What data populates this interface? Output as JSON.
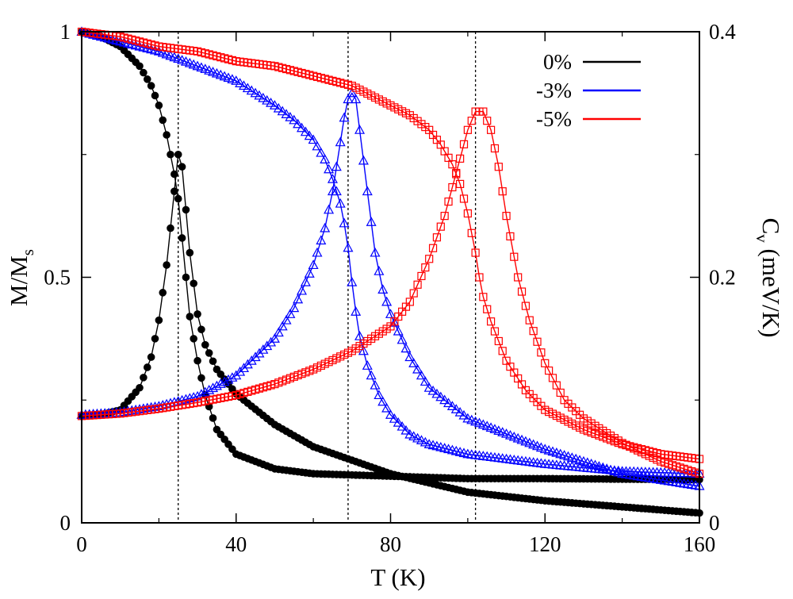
{
  "chart_data": {
    "type": "line",
    "xlabel": "T (K)",
    "ylabel_left": {
      "main": "M/M",
      "sub": "s"
    },
    "ylabel_right": {
      "main": "C",
      "sub": "v",
      "rest": " (meV/K)"
    },
    "xlim": [
      0,
      160
    ],
    "ylim_left": [
      0,
      1
    ],
    "ylim_right": [
      0,
      0.4
    ],
    "x_ticks": [
      0,
      40,
      80,
      120,
      160
    ],
    "x_tick_labels": [
      "0",
      "40",
      "80",
      "120",
      "160"
    ],
    "y_left_ticks": [
      0,
      0.5,
      1
    ],
    "y_left_tick_labels": [
      "0",
      "0.5",
      "1"
    ],
    "y_right_ticks": [
      0,
      0.2,
      0.4
    ],
    "y_right_tick_labels": [
      "0",
      "0.2",
      "0.4"
    ],
    "legend_position": "top-right",
    "series": [
      {
        "name": "0%",
        "color": "#000000",
        "marker": "filled-circle",
        "tc": 25,
        "magnetization": {
          "axis": "left",
          "points": [
            [
              0,
              1.0
            ],
            [
              5,
              0.99
            ],
            [
              10,
              0.97
            ],
            [
              15,
              0.93
            ],
            [
              18,
              0.89
            ],
            [
              20,
              0.85
            ],
            [
              22,
              0.79
            ],
            [
              24,
              0.71
            ],
            [
              25,
              0.66
            ],
            [
              26,
              0.58
            ],
            [
              27,
              0.5
            ],
            [
              28,
              0.42
            ],
            [
              30,
              0.33
            ],
            [
              32,
              0.26
            ],
            [
              35,
              0.19
            ],
            [
              40,
              0.14
            ],
            [
              50,
              0.11
            ],
            [
              60,
              0.1
            ],
            [
              80,
              0.095
            ],
            [
              100,
              0.09
            ],
            [
              120,
              0.09
            ],
            [
              160,
              0.088
            ]
          ]
        },
        "heat_capacity": {
          "axis": "right",
          "points": [
            [
              0,
              0.087
            ],
            [
              5,
              0.088
            ],
            [
              10,
              0.092
            ],
            [
              15,
              0.11
            ],
            [
              18,
              0.135
            ],
            [
              20,
              0.165
            ],
            [
              22,
              0.21
            ],
            [
              24,
              0.27
            ],
            [
              25,
              0.3
            ],
            [
              26,
              0.29
            ],
            [
              27,
              0.255
            ],
            [
              28,
              0.22
            ],
            [
              30,
              0.17
            ],
            [
              32,
              0.145
            ],
            [
              35,
              0.125
            ],
            [
              40,
              0.105
            ],
            [
              50,
              0.08
            ],
            [
              60,
              0.062
            ],
            [
              80,
              0.04
            ],
            [
              100,
              0.025
            ],
            [
              120,
              0.018
            ],
            [
              160,
              0.008
            ]
          ]
        }
      },
      {
        "name": "-3%",
        "color": "#0000ff",
        "marker": "open-triangle",
        "tc": 69,
        "magnetization": {
          "axis": "left",
          "points": [
            [
              0,
              1.0
            ],
            [
              10,
              0.98
            ],
            [
              20,
              0.96
            ],
            [
              30,
              0.93
            ],
            [
              40,
              0.9
            ],
            [
              50,
              0.85
            ],
            [
              55,
              0.82
            ],
            [
              60,
              0.78
            ],
            [
              63,
              0.74
            ],
            [
              65,
              0.7
            ],
            [
              67,
              0.65
            ],
            [
              68,
              0.61
            ],
            [
              69,
              0.56
            ],
            [
              70,
              0.49
            ],
            [
              71,
              0.43
            ],
            [
              72,
              0.38
            ],
            [
              74,
              0.32
            ],
            [
              77,
              0.26
            ],
            [
              80,
              0.22
            ],
            [
              85,
              0.18
            ],
            [
              90,
              0.16
            ],
            [
              100,
              0.14
            ],
            [
              120,
              0.12
            ],
            [
              140,
              0.105
            ],
            [
              160,
              0.1
            ]
          ]
        },
        "heat_capacity": {
          "axis": "right",
          "points": [
            [
              0,
              0.088
            ],
            [
              10,
              0.09
            ],
            [
              20,
              0.095
            ],
            [
              30,
              0.103
            ],
            [
              40,
              0.12
            ],
            [
              50,
              0.15
            ],
            [
              55,
              0.175
            ],
            [
              60,
              0.21
            ],
            [
              63,
              0.24
            ],
            [
              65,
              0.27
            ],
            [
              67,
              0.31
            ],
            [
              68,
              0.33
            ],
            [
              69,
              0.345
            ],
            [
              70,
              0.35
            ],
            [
              71,
              0.345
            ],
            [
              72,
              0.32
            ],
            [
              74,
              0.27
            ],
            [
              76,
              0.22
            ],
            [
              78,
              0.19
            ],
            [
              80,
              0.17
            ],
            [
              85,
              0.135
            ],
            [
              90,
              0.11
            ],
            [
              100,
              0.085
            ],
            [
              120,
              0.06
            ],
            [
              140,
              0.04
            ],
            [
              160,
              0.03
            ]
          ]
        }
      },
      {
        "name": "-5%",
        "color": "#ff0000",
        "marker": "open-square",
        "tc": 102,
        "magnetization": {
          "axis": "left",
          "points": [
            [
              0,
              1.0
            ],
            [
              10,
              0.99
            ],
            [
              20,
              0.97
            ],
            [
              30,
              0.96
            ],
            [
              40,
              0.94
            ],
            [
              50,
              0.93
            ],
            [
              60,
              0.91
            ],
            [
              70,
              0.89
            ],
            [
              80,
              0.85
            ],
            [
              85,
              0.83
            ],
            [
              90,
              0.8
            ],
            [
              93,
              0.77
            ],
            [
              96,
              0.73
            ],
            [
              98,
              0.69
            ],
            [
              100,
              0.63
            ],
            [
              101,
              0.59
            ],
            [
              102,
              0.55
            ],
            [
              103,
              0.5
            ],
            [
              104,
              0.46
            ],
            [
              106,
              0.41
            ],
            [
              108,
              0.37
            ],
            [
              110,
              0.33
            ],
            [
              115,
              0.27
            ],
            [
              120,
              0.23
            ],
            [
              130,
              0.19
            ],
            [
              140,
              0.16
            ],
            [
              150,
              0.14
            ],
            [
              160,
              0.13
            ]
          ]
        },
        "heat_capacity": {
          "axis": "right",
          "points": [
            [
              0,
              0.087
            ],
            [
              10,
              0.089
            ],
            [
              20,
              0.093
            ],
            [
              30,
              0.098
            ],
            [
              40,
              0.104
            ],
            [
              50,
              0.113
            ],
            [
              60,
              0.125
            ],
            [
              70,
              0.14
            ],
            [
              80,
              0.16
            ],
            [
              85,
              0.18
            ],
            [
              90,
              0.215
            ],
            [
              94,
              0.25
            ],
            [
              97,
              0.285
            ],
            [
              100,
              0.32
            ],
            [
              102,
              0.335
            ],
            [
              104,
              0.335
            ],
            [
              106,
              0.32
            ],
            [
              108,
              0.29
            ],
            [
              110,
              0.25
            ],
            [
              113,
              0.2
            ],
            [
              116,
              0.165
            ],
            [
              120,
              0.13
            ],
            [
              125,
              0.1
            ],
            [
              130,
              0.085
            ],
            [
              140,
              0.065
            ],
            [
              150,
              0.05
            ],
            [
              160,
              0.04
            ]
          ]
        }
      }
    ]
  }
}
